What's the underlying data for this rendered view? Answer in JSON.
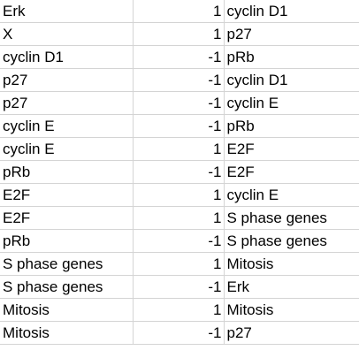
{
  "rows": [
    {
      "source": "Erk",
      "sign": "1",
      "target": "cyclin D1"
    },
    {
      "source": "X",
      "sign": "1",
      "target": "p27"
    },
    {
      "source": "cyclin D1",
      "sign": "-1",
      "target": "pRb"
    },
    {
      "source": "p27",
      "sign": "-1",
      "target": "cyclin D1"
    },
    {
      "source": "p27",
      "sign": "-1",
      "target": "cyclin E"
    },
    {
      "source": "cyclin E",
      "sign": "-1",
      "target": "pRb"
    },
    {
      "source": "cyclin E",
      "sign": "1",
      "target": "E2F"
    },
    {
      "source": "pRb",
      "sign": "-1",
      "target": "E2F"
    },
    {
      "source": "E2F",
      "sign": "1",
      "target": "cyclin E"
    },
    {
      "source": "E2F",
      "sign": "1",
      "target": "S phase genes"
    },
    {
      "source": "pRb",
      "sign": "-1",
      "target": "S phase genes"
    },
    {
      "source": "S phase genes",
      "sign": "1",
      "target": "Mitosis"
    },
    {
      "source": "S phase genes",
      "sign": "-1",
      "target": "Erk"
    },
    {
      "source": "Mitosis",
      "sign": "1",
      "target": "Mitosis"
    },
    {
      "source": "Mitosis",
      "sign": "-1",
      "target": "p27"
    }
  ]
}
